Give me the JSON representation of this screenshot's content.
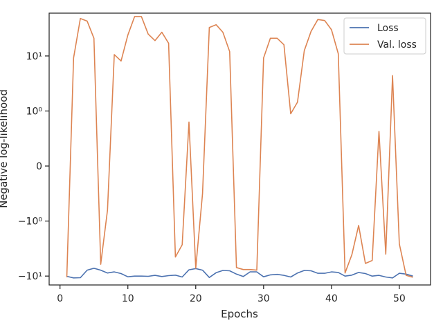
{
  "chart_data": {
    "type": "line",
    "title": "",
    "xlabel": "Epochs",
    "ylabel": "Negative log-likelihood",
    "yscale": "symlog",
    "xlim": [
      -1.6,
      54.6
    ],
    "ylim": [
      -14.5,
      60
    ],
    "xticks": [
      0,
      10,
      20,
      30,
      40,
      50
    ],
    "xtick_labels": [
      "0",
      "10",
      "20",
      "30",
      "40",
      "50"
    ],
    "yticks": [
      -10,
      -1,
      0,
      1,
      10
    ],
    "ytick_labels": [
      "−10¹",
      "−10⁰",
      "0",
      "10⁰",
      "10¹"
    ],
    "legend_position": "top-right",
    "grid": false,
    "x": [
      1,
      2,
      3,
      4,
      5,
      6,
      7,
      8,
      9,
      10,
      11,
      12,
      13,
      14,
      15,
      16,
      17,
      18,
      19,
      20,
      21,
      22,
      23,
      24,
      25,
      26,
      27,
      28,
      29,
      30,
      31,
      32,
      33,
      34,
      35,
      36,
      37,
      38,
      39,
      40,
      41,
      42,
      43,
      44,
      45,
      46,
      47,
      48,
      49,
      50,
      51,
      52
    ],
    "series": [
      {
        "name": "Loss",
        "color": "#4c72b0",
        "values": [
          -10.1,
          -10.8,
          -10.7,
          -7.8,
          -7.2,
          -7.8,
          -8.8,
          -8.4,
          -9.0,
          -10.3,
          -10.0,
          -10.0,
          -10.1,
          -9.7,
          -10.2,
          -9.8,
          -9.6,
          -10.4,
          -7.7,
          -7.3,
          -7.8,
          -10.6,
          -8.7,
          -7.9,
          -8.0,
          -9.2,
          -10.2,
          -8.4,
          -8.4,
          -10.3,
          -9.5,
          -9.3,
          -9.7,
          -10.4,
          -8.8,
          -7.9,
          -8.0,
          -8.9,
          -8.9,
          -8.4,
          -8.6,
          -10.0,
          -9.6,
          -8.6,
          -9.0,
          -10.0,
          -9.7,
          -10.4,
          -10.8,
          -8.9,
          -9.2,
          -10.0
        ]
      },
      {
        "name": "Val. loss",
        "color": "#dd8452",
        "values": [
          -10.5,
          9.2,
          48,
          43,
          21,
          -6.1,
          -0.8,
          10.6,
          8.1,
          24,
          52,
          52,
          25,
          19,
          27,
          17,
          -4.5,
          -2.7,
          0.8,
          -7.2,
          -0.5,
          33,
          37,
          27,
          12,
          -7.0,
          -7.6,
          -7.6,
          -7.8,
          9.2,
          21,
          21,
          16,
          0.95,
          1.45,
          12.5,
          28,
          46,
          44,
          30,
          11,
          -8.8,
          -4.1,
          -1.2,
          -5.9,
          -5.2,
          0.63,
          -4.0,
          4.4,
          -2.6,
          -9.7,
          -10.5
        ]
      }
    ]
  }
}
